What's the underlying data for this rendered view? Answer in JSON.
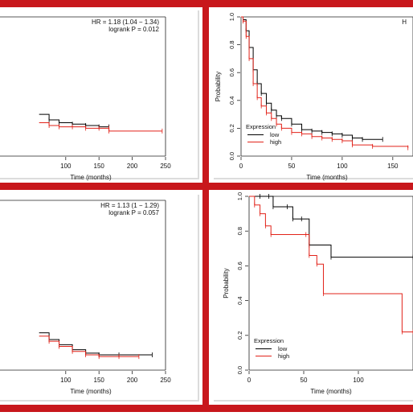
{
  "colors": {
    "frame": "#c8171c",
    "panel_shadow": "#9a9a9a",
    "series_low": "#000000",
    "series_high": "#e2231a"
  },
  "chart_data": [
    {
      "type": "line",
      "panel": "top-left",
      "xlabel": "Time (months)",
      "ylabel": "",
      "xticks": [
        100,
        150,
        200,
        250
      ],
      "yticks": [],
      "xlim": [
        0,
        250
      ],
      "ylim": [
        0,
        1
      ],
      "grid": false,
      "annotation": {
        "hr": "HR = 1.18 (1.04 − 1.34)",
        "p": "logrank P = 0.012"
      },
      "series": [
        {
          "key": "low",
          "color": "#000000",
          "x": [
            60,
            75,
            90,
            110,
            130,
            150,
            165
          ],
          "y": [
            0.3,
            0.26,
            0.24,
            0.23,
            0.22,
            0.21,
            0.21
          ]
        },
        {
          "key": "high",
          "color": "#e2231a",
          "x": [
            60,
            75,
            90,
            110,
            130,
            150,
            165,
            165,
            245
          ],
          "y": [
            0.24,
            0.22,
            0.21,
            0.21,
            0.2,
            0.2,
            0.2,
            0.18,
            0.18
          ]
        }
      ]
    },
    {
      "type": "line",
      "panel": "top-right",
      "xlabel": "Time (months)",
      "ylabel": "Probability",
      "xticks": [
        0,
        50,
        100,
        150
      ],
      "yticks": [
        0.0,
        0.2,
        0.4,
        0.6,
        0.8,
        1.0
      ],
      "xlim": [
        0,
        170
      ],
      "ylim": [
        0,
        1
      ],
      "grid": false,
      "annotation": {
        "hr": "H",
        "p": ""
      },
      "legend": {
        "title": "Expression",
        "position": "bottom-left"
      },
      "series": [
        {
          "name": "low",
          "key": "low",
          "color": "#000000",
          "x": [
            0,
            2,
            5,
            8,
            12,
            16,
            20,
            25,
            30,
            35,
            40,
            50,
            60,
            70,
            80,
            90,
            100,
            110,
            120,
            140
          ],
          "y": [
            1.0,
            0.98,
            0.9,
            0.78,
            0.62,
            0.52,
            0.45,
            0.38,
            0.33,
            0.29,
            0.27,
            0.23,
            0.19,
            0.18,
            0.17,
            0.16,
            0.15,
            0.13,
            0.12,
            0.12
          ]
        },
        {
          "name": "high",
          "key": "high",
          "color": "#e2231a",
          "x": [
            0,
            2,
            5,
            8,
            12,
            16,
            20,
            25,
            30,
            35,
            40,
            50,
            60,
            70,
            80,
            90,
            100,
            110,
            130,
            165
          ],
          "y": [
            1.0,
            0.97,
            0.86,
            0.7,
            0.52,
            0.42,
            0.36,
            0.31,
            0.27,
            0.23,
            0.2,
            0.17,
            0.16,
            0.14,
            0.13,
            0.12,
            0.11,
            0.08,
            0.07,
            0.06
          ]
        }
      ]
    },
    {
      "type": "line",
      "panel": "bottom-left",
      "xlabel": "Time (months)",
      "ylabel": "",
      "xticks": [
        100,
        150,
        200,
        250
      ],
      "yticks": [],
      "xlim": [
        0,
        250
      ],
      "ylim": [
        0,
        1
      ],
      "grid": false,
      "annotation": {
        "hr": "HR = 1.13 (1 − 1.29)",
        "p": "logrank P = 0.057"
      },
      "series": [
        {
          "key": "low",
          "color": "#000000",
          "x": [
            60,
            75,
            90,
            110,
            130,
            150,
            180,
            230
          ],
          "y": [
            0.22,
            0.18,
            0.15,
            0.12,
            0.1,
            0.09,
            0.09,
            0.09
          ]
        },
        {
          "key": "high",
          "color": "#e2231a",
          "x": [
            60,
            75,
            90,
            110,
            130,
            150,
            180,
            210
          ],
          "y": [
            0.2,
            0.17,
            0.14,
            0.11,
            0.09,
            0.08,
            0.08,
            0.08
          ]
        }
      ]
    },
    {
      "type": "line",
      "panel": "bottom-right",
      "xlabel": "Time (months)",
      "ylabel": "Probability",
      "xticks": [
        0,
        50,
        100
      ],
      "yticks": [
        0.0,
        0.2,
        0.4,
        0.6,
        0.8,
        1.0
      ],
      "xlim": [
        0,
        150
      ],
      "ylim": [
        0,
        1
      ],
      "grid": false,
      "legend": {
        "title": "Expression",
        "position": "bottom-left"
      },
      "series": [
        {
          "name": "low",
          "key": "low",
          "color": "#000000",
          "x": [
            0,
            10,
            18,
            22,
            35,
            40,
            48,
            55,
            75,
            150
          ],
          "y": [
            1.0,
            1.0,
            1.0,
            0.94,
            0.94,
            0.87,
            0.87,
            0.72,
            0.65,
            0.65
          ]
        },
        {
          "name": "high",
          "key": "high",
          "color": "#e2231a",
          "x": [
            0,
            5,
            10,
            15,
            20,
            52,
            55,
            62,
            68,
            140,
            150
          ],
          "y": [
            1.0,
            0.95,
            0.9,
            0.83,
            0.78,
            0.78,
            0.66,
            0.61,
            0.44,
            0.22,
            0.22
          ]
        }
      ]
    }
  ]
}
